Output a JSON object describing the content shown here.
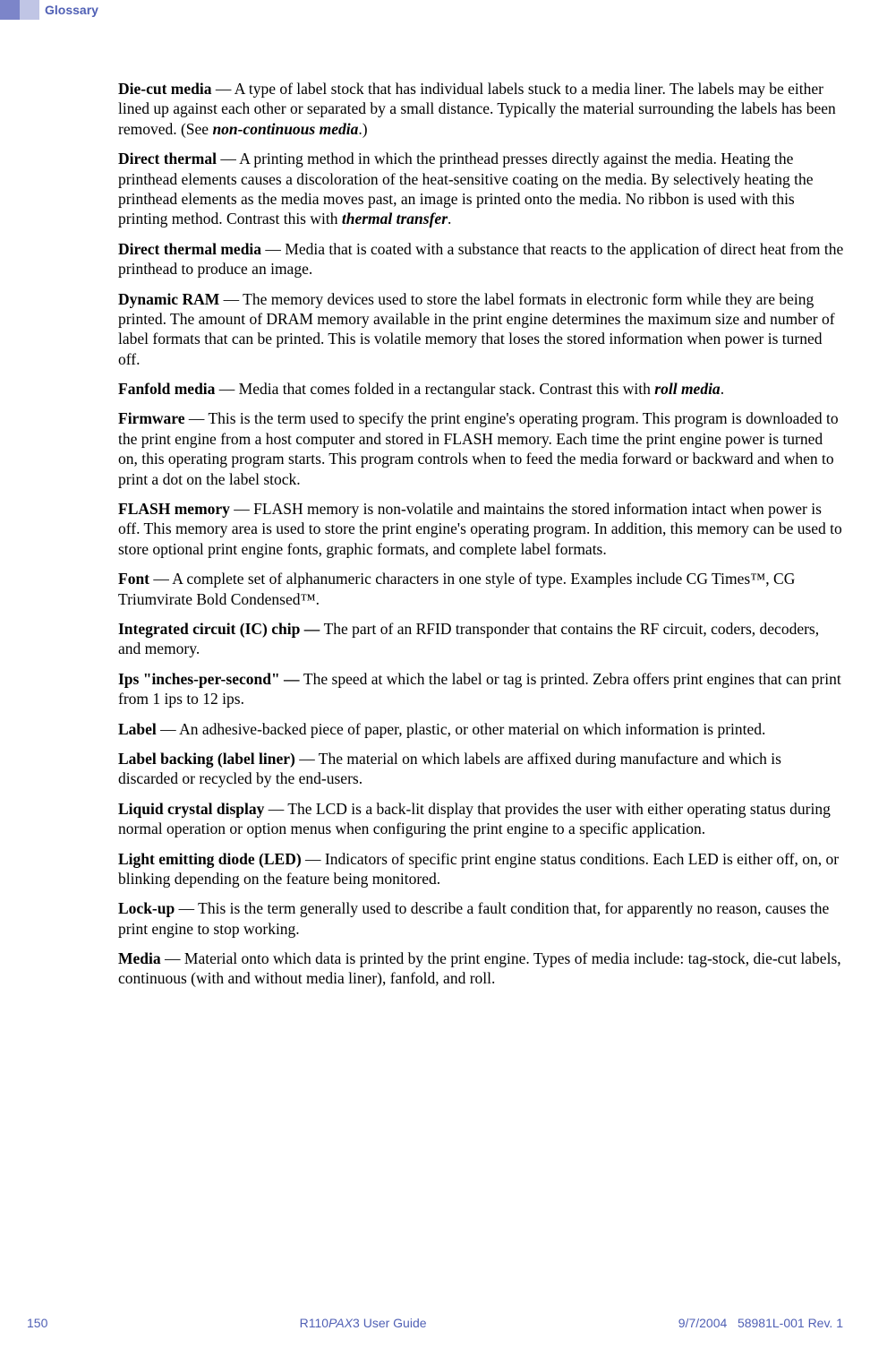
{
  "header": {
    "title": "Glossary"
  },
  "entries": {
    "die_cut_media": {
      "term": "Die-cut media",
      "text": " — A type of label stock that has individual labels stuck to a media liner. The labels may be either lined up against each other or separated by a small distance. Typically the material surrounding the labels has been removed. (See ",
      "ref": "non-continuous media",
      "after": ".)"
    },
    "direct_thermal": {
      "term": "Direct thermal",
      "text": " — A printing method in which the printhead presses directly against the media. Heating the printhead elements causes a discoloration of the heat-sensitive coating on the media. By selectively heating the printhead elements as the media moves past, an image is printed onto the media. No ribbon is used with this printing method. Contrast this with ",
      "ref": "thermal transfer",
      "after": "."
    },
    "direct_thermal_media": {
      "term": "Direct thermal media",
      "text": " — Media that is coated with a substance that reacts to the application of direct heat from the printhead to produce an image."
    },
    "dynamic_ram": {
      "term": "Dynamic RAM",
      "text": " — The memory devices used to store the label formats in electronic form while they are being printed. The amount of DRAM memory available in the print engine determines the maximum size and number of label formats that can be printed. This is volatile memory that loses the stored information when power is turned off."
    },
    "fanfold_media": {
      "term": "Fanfold media",
      "text": " — Media that comes folded in a rectangular stack. Contrast this with ",
      "ref": "roll media",
      "after": "."
    },
    "firmware": {
      "term": "Firmware",
      "text": " — This is the term used to specify the print engine's operating program. This program is downloaded to the print engine from a host computer and stored in FLASH memory. Each time the print engine power is turned on, this operating program starts. This program controls when to feed the media forward or backward and when to print a dot on the label stock."
    },
    "flash_memory": {
      "term": "FLASH memory",
      "text": " — FLASH memory is non-volatile and maintains the stored information intact when power is off. This memory area is used to store the print engine's operating program. In addition, this memory can be used to store optional print engine fonts, graphic formats, and complete label formats."
    },
    "font": {
      "term": "Font",
      "text": " — A complete set of alphanumeric characters in one style of type. Examples include CG Times™, CG Triumvirate Bold Condensed™."
    },
    "ic_chip": {
      "term": "Integrated circuit (IC) chip — ",
      "text": "The part of an RFID transponder that contains the RF circuit, coders, decoders, and memory."
    },
    "ips": {
      "term": "Ips \"inches-per-second\" — ",
      "text": "The speed at which the label or tag is printed. Zebra offers print engines that can print from 1 ips to 12 ips."
    },
    "label": {
      "term": "Label",
      "text": " — An adhesive-backed piece of paper, plastic, or other material on which information is printed."
    },
    "label_backing": {
      "term": "Label backing (label liner)",
      "text": " — The material on which labels are affixed during manufacture and which is discarded or recycled by the end-users."
    },
    "lcd": {
      "term": "Liquid crystal display",
      "text": " — The LCD is a back-lit display that provides the user with either operating status during normal operation or option menus when configuring the print engine to a specific application."
    },
    "led": {
      "term": "Light emitting diode (LED)",
      "text": " — Indicators of specific print engine status conditions. Each LED is either off, on, or blinking depending on the feature being monitored."
    },
    "lockup": {
      "term": "Lock-up",
      "text": " — This is the term generally used to describe a fault condition that, for apparently no reason, causes the print engine to stop working."
    },
    "media": {
      "term": "Media",
      "text": " — Material onto which data is printed by the print engine. Types of media include: tag-stock, die-cut labels, continuous (with and without media liner), fanfold, and roll."
    }
  },
  "footer": {
    "page": "150",
    "guide_prefix": "R110",
    "guide_italic": "PAX",
    "guide_suffix": "3 User Guide",
    "date": "9/7/2004",
    "docnum": "58981L-001 Rev. 1"
  }
}
